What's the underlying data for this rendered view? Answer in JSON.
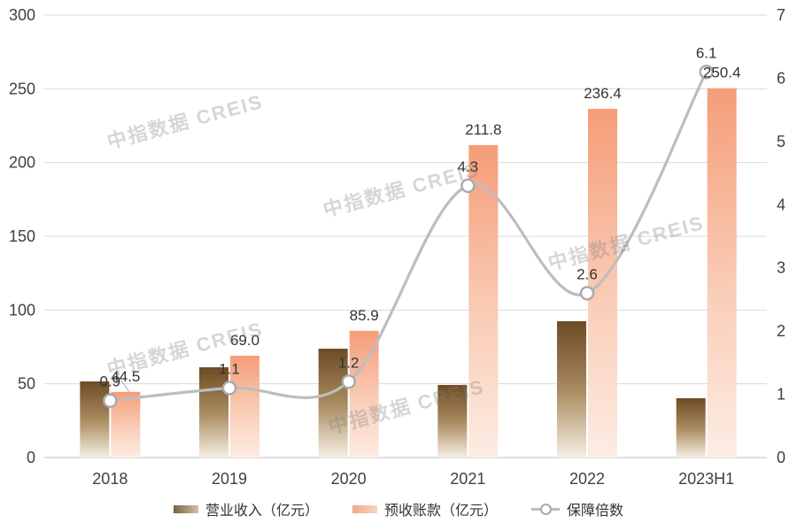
{
  "watermark": {
    "text": "中指数据 CREIS"
  },
  "chart_data": {
    "type": "combo_bar_line",
    "title": "",
    "categories": [
      "2018",
      "2019",
      "2020",
      "2021",
      "2022",
      "2023H1"
    ],
    "series": [
      {
        "key": "revenue",
        "name": "营业收入（亿元）",
        "type": "bar",
        "axis": "left",
        "values": [
          51.6,
          61.2,
          73.8,
          49.2,
          92.4,
          40.2
        ],
        "labels": null
      },
      {
        "key": "advance",
        "name": "预收账款（亿元）",
        "type": "bar",
        "axis": "left",
        "values": [
          44.5,
          69.0,
          85.9,
          211.8,
          236.4,
          250.4
        ],
        "labels": [
          "44.5",
          "69.0",
          "85.9",
          "211.8",
          "236.4",
          "250.4"
        ],
        "label_leader_index": 0
      },
      {
        "key": "ratio",
        "name": "保障倍数",
        "type": "line",
        "axis": "right",
        "values": [
          0.9,
          1.1,
          1.2,
          4.3,
          2.6,
          6.1
        ],
        "labels": [
          "0.9",
          "1.1",
          "1.2",
          "4.3",
          "2.6",
          "6.1"
        ]
      }
    ],
    "left_axis": {
      "min": 0,
      "max": 300,
      "step": 50,
      "ticks": [
        "0",
        "50",
        "100",
        "150",
        "200",
        "250",
        "300"
      ]
    },
    "right_axis": {
      "min": 0,
      "max": 7,
      "step": 1,
      "ticks": [
        "0",
        "1",
        "2",
        "3",
        "4",
        "5",
        "6",
        "7"
      ]
    },
    "grid": true,
    "legend_position": "bottom",
    "colors": {
      "bar_revenue_top": "#6d4b24",
      "bar_revenue_mid": "#ab8d62",
      "bar_revenue_bottom": "#f5efe3",
      "bar_advance_top": "#f59d78",
      "bar_advance_mid": "#f9cdb7",
      "bar_advance_bottom": "#fdece3",
      "line": "#bdbdbd",
      "marker_stroke": "#a9a9a9",
      "marker_fill": "#ffffff",
      "grid": "#d9d9d9",
      "axis_line": "#bfbfbf",
      "tick_text": "#404040",
      "label_text": "#333333"
    }
  }
}
